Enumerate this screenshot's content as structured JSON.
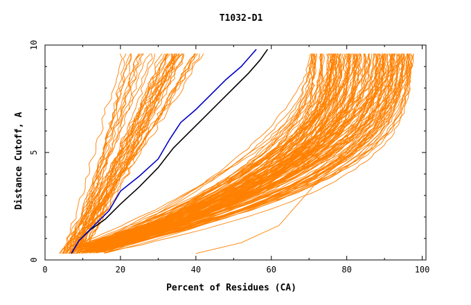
{
  "chart_data": {
    "type": "line",
    "title": "T1032-D1",
    "xlabel": "Percent of Residues (CA)",
    "ylabel": "Distance Cutoff, A",
    "xlim": [
      0,
      101
    ],
    "ylim": [
      0,
      10
    ],
    "x_ticks": [
      0,
      20,
      40,
      60,
      80,
      100
    ],
    "x_tick_labels": [
      "0",
      "20",
      "40",
      "60",
      "80",
      "100"
    ],
    "y_ticks": [
      0,
      5,
      10
    ],
    "y_tick_labels": [
      "0",
      "5",
      "10"
    ],
    "grid": false,
    "legend": "none",
    "colors": {
      "models": "#ff8000",
      "highlight_blue": "#0000c8",
      "highlight_black": "#000000",
      "frame": "#000000"
    },
    "series": [
      {
        "color": "#000000",
        "x": [
          7,
          9,
          12,
          16,
          20,
          25,
          30,
          34,
          38,
          42,
          46,
          50,
          54,
          57,
          59
        ],
        "y": [
          0.3,
          0.9,
          1.4,
          1.9,
          2.6,
          3.4,
          4.3,
          5.2,
          5.9,
          6.6,
          7.3,
          8.0,
          8.7,
          9.3,
          9.8
        ]
      },
      {
        "color": "#0000c8",
        "x": [
          7,
          9,
          13,
          17,
          20,
          25,
          30,
          33,
          36,
          40,
          44,
          48,
          52,
          54,
          56
        ],
        "y": [
          0.3,
          0.9,
          1.6,
          2.3,
          3.2,
          3.9,
          4.7,
          5.6,
          6.4,
          7.0,
          7.7,
          8.4,
          9.0,
          9.4,
          9.8
        ]
      }
    ]
  }
}
